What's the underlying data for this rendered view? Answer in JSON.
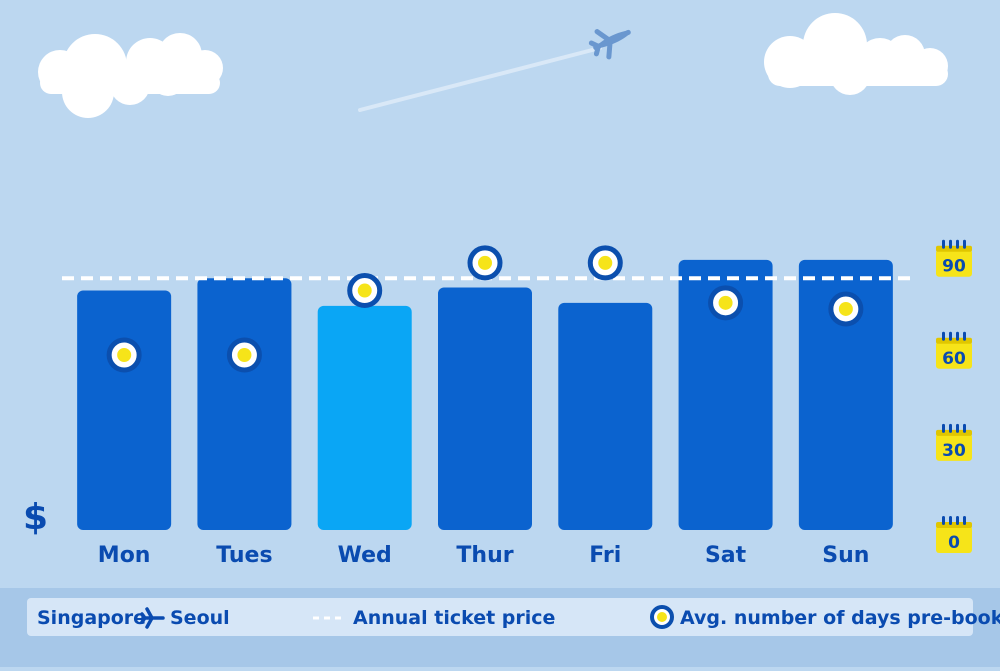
{
  "colors": {
    "background": "#bcd7f0",
    "bar": "#0b63cf",
    "bar_highlight": "#0aa6f5",
    "marker_ring": "#0b4fae",
    "marker_dot": "#f6e419",
    "calendar": "#f6e419",
    "text": "#0a4bb0",
    "legend_band": "#a6c7e8",
    "legend_box": "#d6e6f7"
  },
  "currency_symbol": "$",
  "chart_data": {
    "type": "bar",
    "categories": [
      "Mon",
      "Tues",
      "Wed",
      "Thur",
      "Fri",
      "Sat",
      "Sun"
    ],
    "highlight_category": "Wed",
    "series": [
      {
        "name": "Annual ticket price",
        "kind": "reference-line",
        "value": 82
      },
      {
        "name": "Avg. number of days pre-booked",
        "kind": "markers",
        "values": [
          57,
          57,
          78,
          87,
          87,
          74,
          72
        ]
      }
    ],
    "bar_values": [
      78,
      82,
      73,
      79,
      74,
      88,
      88
    ],
    "y_right_ticks": [
      90,
      60,
      30,
      0
    ],
    "ylim": [
      0,
      100
    ],
    "title": "",
    "xlabel": "",
    "ylabel": "$",
    "grid": false,
    "legend_placement": "bottom"
  },
  "legend": {
    "origin": "Singapore",
    "destination": "Seoul",
    "line_label": "Annual ticket price",
    "marker_label": "Avg. number of days pre-booked"
  }
}
